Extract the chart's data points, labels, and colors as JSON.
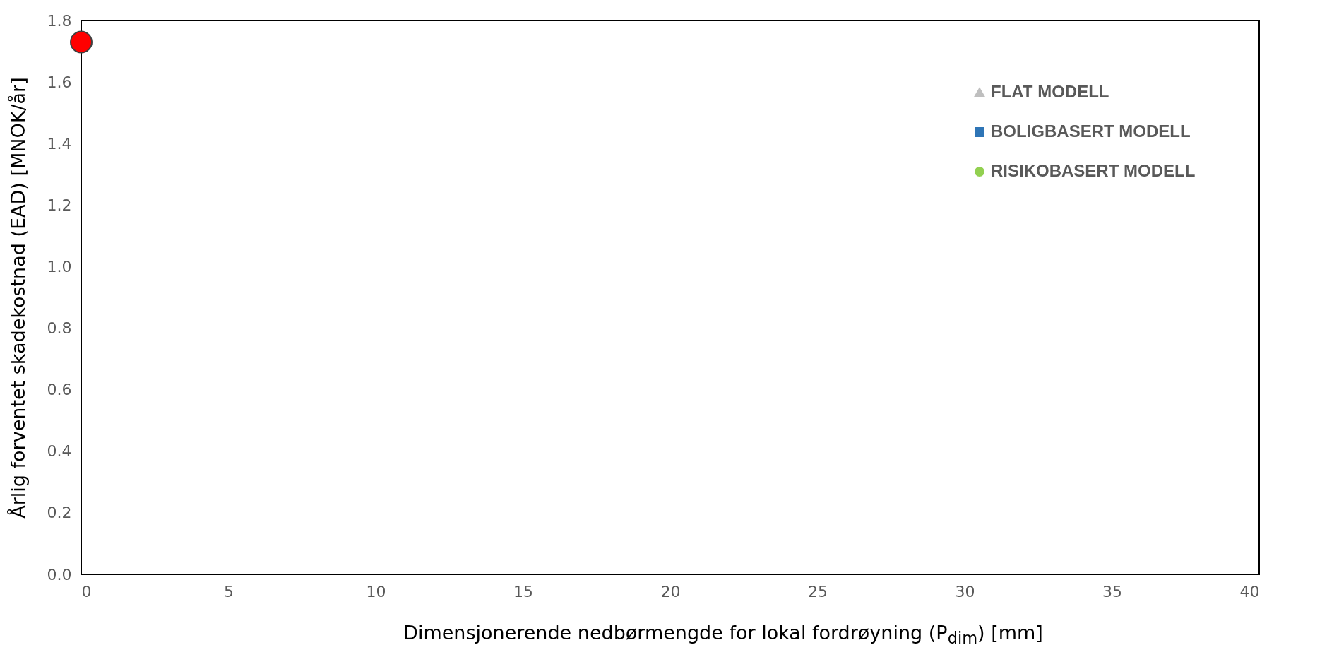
{
  "chart_data": {
    "type": "line",
    "xlabel": "Dimensjonerende nedbørmengde for lokal fordrøyning (P$_{dim}$) [mm]",
    "ylabel": "Årlig forventet skadekostnad (EAD) [MNOK/år]",
    "xlim": [
      0,
      40
    ],
    "xticks": [
      0,
      5,
      10,
      15,
      20,
      25,
      30,
      35,
      40
    ],
    "ylim": [
      0,
      1.8
    ],
    "yticks": [
      {
        "value": 0,
        "label": "0.0"
      },
      {
        "value": 0.2,
        "label": "0.2"
      },
      {
        "value": 0.4,
        "label": "0.4"
      },
      {
        "value": 0.6,
        "label": "0.6"
      },
      {
        "value": 0.8,
        "label": "0.8"
      },
      {
        "value": 1,
        "label": "1.0"
      },
      {
        "value": 1.2,
        "label": "1.2"
      },
      {
        "value": 1.4,
        "label": "1.4"
      },
      {
        "value": 1.6,
        "label": "1.6"
      },
      {
        "value": 1.8,
        "label": "1.8"
      }
    ],
    "grid": false,
    "legend": "top right",
    "series": [
      {
        "name": "FLAT MODELL",
        "color": "#bfbfbf",
        "marker": "triangle"
      },
      {
        "name": "BOLIGBASERT MODELL",
        "color": "#2e75b6",
        "marker": "square"
      },
      {
        "name": "RISIKOBASERT MODELL",
        "color": "#92d050",
        "marker": "circle"
      },
      {
        "type": "scatter",
        "color": "#ff0000",
        "marker": "circle",
        "x": [
          0
        ],
        "values": [
          1.73
        ]
      }
    ]
  }
}
